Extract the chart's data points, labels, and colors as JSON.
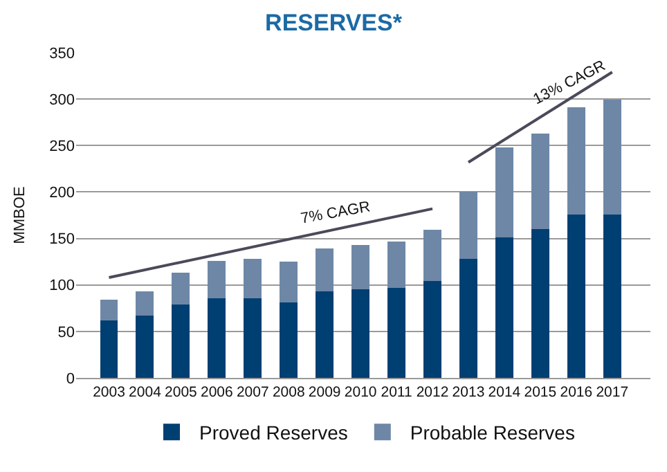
{
  "chart_data": {
    "type": "bar",
    "title": "RESERVES*",
    "ylabel": "MMBOE",
    "stacked": true,
    "categories": [
      "2003",
      "2004",
      "2005",
      "2006",
      "2007",
      "2008",
      "2009",
      "2010",
      "2011",
      "2012",
      "2013",
      "2014",
      "2015",
      "2016",
      "2017"
    ],
    "series": [
      {
        "name": "Proved Reserves",
        "color": "#003f72",
        "values": [
          62,
          67,
          79,
          86,
          86,
          81,
          93,
          95,
          97,
          104,
          128,
          151,
          160,
          176,
          176
        ]
      },
      {
        "name": "Probable Reserves",
        "color": "#6e87a6",
        "values": [
          22,
          26,
          34,
          40,
          42,
          44,
          46,
          48,
          50,
          55,
          72,
          97,
          103,
          115,
          123
        ]
      },
      {
        "name": "7% CAGR",
        "type": "line",
        "color": "#4a4a5a",
        "values": [
          108,
          null,
          null,
          null,
          null,
          null,
          null,
          null,
          null,
          182,
          null,
          null,
          null,
          null,
          null
        ]
      },
      {
        "name": "13% CAGR",
        "type": "line",
        "color": "#4a4a5a",
        "values": [
          null,
          null,
          null,
          null,
          null,
          null,
          null,
          null,
          null,
          null,
          232,
          null,
          null,
          null,
          329
        ]
      }
    ],
    "ylim": [
      0,
      350
    ],
    "yticks": [
      0,
      50,
      100,
      150,
      200,
      250,
      300,
      350
    ],
    "grid": "y",
    "legend": "bottom"
  }
}
